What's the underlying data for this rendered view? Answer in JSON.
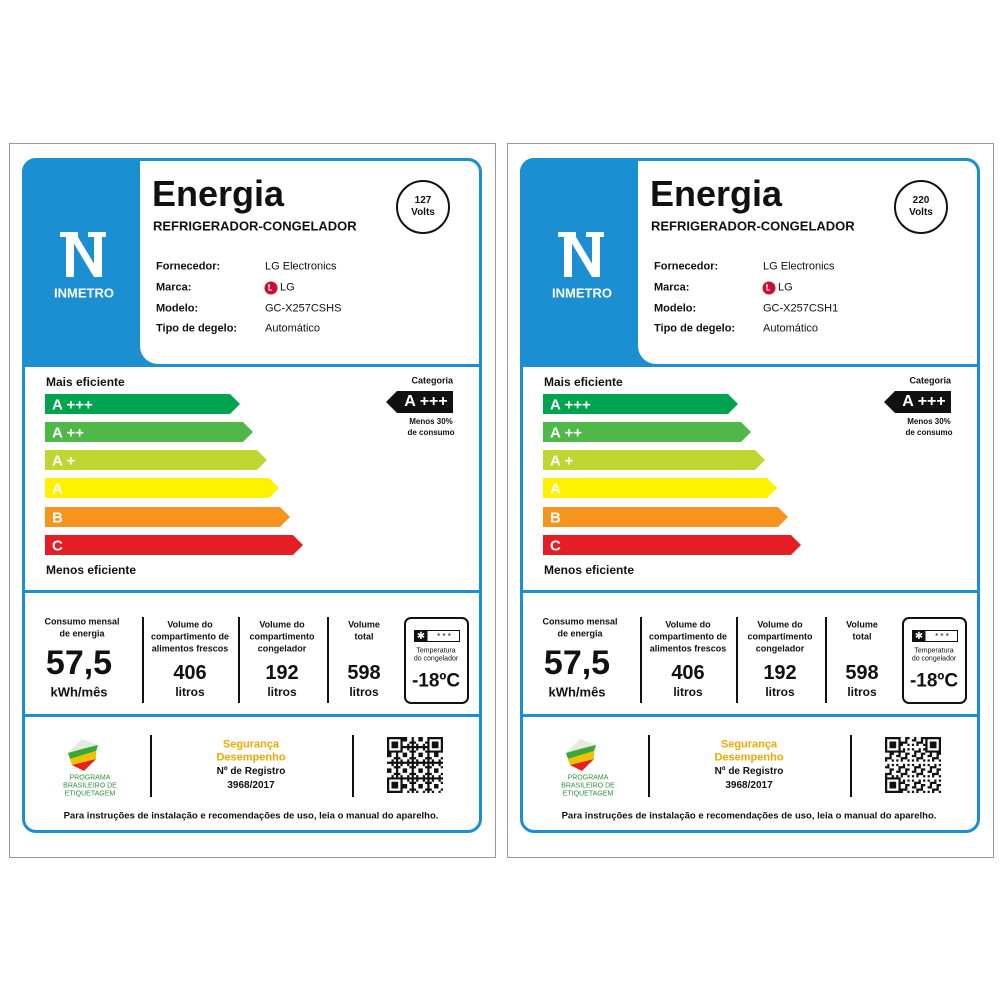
{
  "labels": [
    {
      "logo": "INMETRO",
      "title": "Energia",
      "subtitle": "REFRIGERADOR-CONGELADOR",
      "voltage": {
        "value": "127",
        "unit": "Volts"
      },
      "fields": [
        {
          "label": "Fornecedor:",
          "value": "LG Electronics"
        },
        {
          "label": "Marca:",
          "value": "LG"
        },
        {
          "label": "Modelo:",
          "value": "GC-X257CSHS"
        },
        {
          "label": "Tipo de degelo:",
          "value": "Automático"
        }
      ],
      "scale": {
        "top": "Mais eficiente",
        "classes": [
          "A +++",
          "A ++",
          "A +",
          "A",
          "B",
          "C"
        ],
        "bottom": "Menos eficiente"
      },
      "category": {
        "heading": "Categoria",
        "value": "A +++",
        "note": [
          "Menos 30%",
          "de consumo"
        ]
      },
      "consumption": {
        "label": [
          "Consumo mensal",
          "de energia"
        ],
        "value": "57,5",
        "unit": "kWh/mês"
      },
      "volumes": [
        {
          "label": [
            "Volume do",
            "compartimento de",
            "alimentos frescos"
          ],
          "value": "406",
          "unit": "litros"
        },
        {
          "label": [
            "Volume do",
            "compartimento",
            "congelador"
          ],
          "value": "192",
          "unit": "litros"
        },
        {
          "label": [
            "Volume",
            "total"
          ],
          "value": "598",
          "unit": "litros"
        }
      ],
      "temperature": {
        "label": [
          "Temperatura",
          "do congelador"
        ],
        "value": "-18ºC"
      },
      "program": [
        "PROGRAMA",
        "BRASILEIRO DE",
        "ETIQUETAGEM"
      ],
      "registry": {
        "lines": [
          "Segurança",
          "Desempenho"
        ],
        "heading": "Nº de Registro",
        "number": "3968/2017"
      },
      "note": "Para instruções de instalação e recomendações de uso, leia o manual do aparelho."
    },
    {
      "logo": "INMETRO",
      "title": "Energia",
      "subtitle": "REFRIGERADOR-CONGELADOR",
      "voltage": {
        "value": "220",
        "unit": "Volts"
      },
      "fields": [
        {
          "label": "Fornecedor:",
          "value": "LG Electronics"
        },
        {
          "label": "Marca:",
          "value": "LG"
        },
        {
          "label": "Modelo:",
          "value": "GC-X257CSH1"
        },
        {
          "label": "Tipo de degelo:",
          "value": "Automático"
        }
      ],
      "scale": {
        "top": "Mais eficiente",
        "classes": [
          "A +++",
          "A ++",
          "A +",
          "A",
          "B",
          "C"
        ],
        "bottom": "Menos eficiente"
      },
      "category": {
        "heading": "Categoria",
        "value": "A +++",
        "note": [
          "Menos 30%",
          "de consumo"
        ]
      },
      "consumption": {
        "label": [
          "Consumo mensal",
          "de energia"
        ],
        "value": "57,5",
        "unit": "kWh/mês"
      },
      "volumes": [
        {
          "label": [
            "Volume do",
            "compartimento de",
            "alimentos frescos"
          ],
          "value": "406",
          "unit": "litros"
        },
        {
          "label": [
            "Volume do",
            "compartimento",
            "congelador"
          ],
          "value": "192",
          "unit": "litros"
        },
        {
          "label": [
            "Volume",
            "total"
          ],
          "value": "598",
          "unit": "litros"
        }
      ],
      "temperature": {
        "label": [
          "Temperatura",
          "do congelador"
        ],
        "value": "-18ºC"
      },
      "program": [
        "PROGRAMA",
        "BRASILEIRO DE",
        "ETIQUETAGEM"
      ],
      "registry": {
        "lines": [
          "Segurança",
          "Desempenho"
        ],
        "heading": "Nº de Registro",
        "number": "3968/2017"
      },
      "note": "Para instruções de instalação e recomendações de uso, leia o manual do aparelho."
    }
  ]
}
